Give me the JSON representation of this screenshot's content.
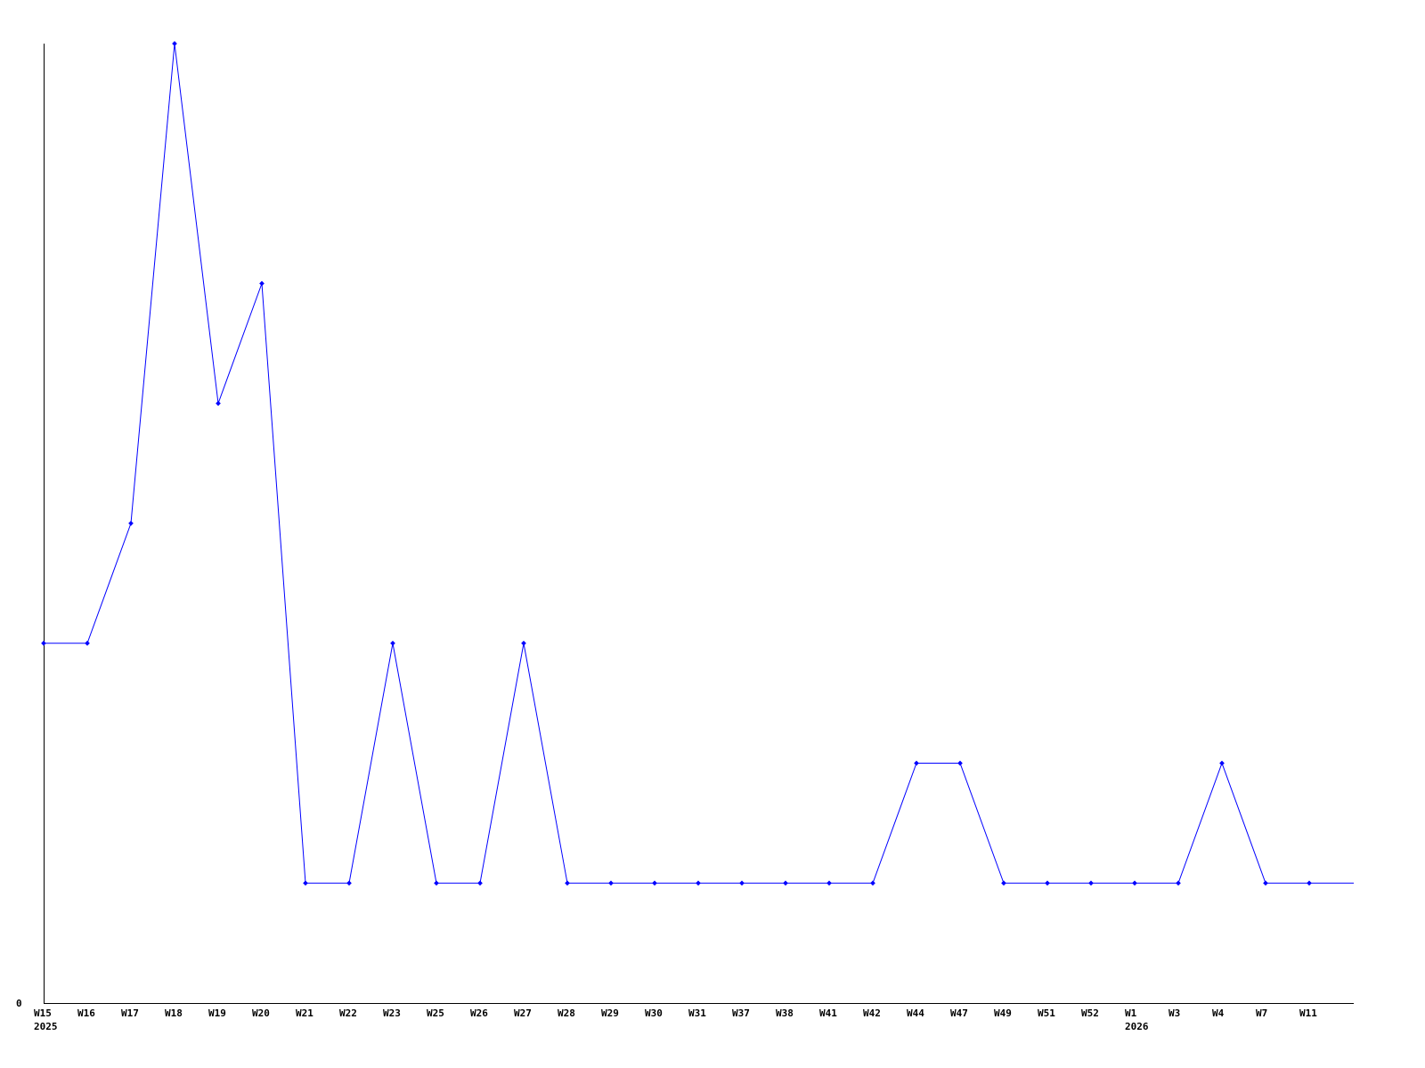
{
  "chart_data": {
    "type": "line",
    "title": "",
    "xlabel": "",
    "ylabel": "",
    "categories": [
      "W15",
      "W16",
      "W17",
      "W18",
      "W19",
      "W20",
      "W21",
      "W22",
      "W23",
      "W25",
      "W26",
      "W27",
      "W28",
      "W29",
      "W30",
      "W31",
      "W37",
      "W38",
      "W41",
      "W42",
      "W44",
      "W47",
      "W49",
      "W51",
      "W52",
      "W1",
      "W3",
      "W4",
      "W7",
      "W11"
    ],
    "year_labels": [
      {
        "at": "W15",
        "label": "2025"
      },
      {
        "at": "W1",
        "label": "2026"
      }
    ],
    "values": [
      3,
      3,
      4,
      8,
      5,
      6,
      1,
      1,
      3,
      1,
      1,
      3,
      1,
      1,
      1,
      1,
      1,
      1,
      1,
      1,
      2,
      2,
      1,
      1,
      1,
      1,
      1,
      2,
      1,
      1
    ],
    "trailing_value": 1,
    "y_tick_labels": [
      "0"
    ],
    "ylim": [
      0,
      8
    ],
    "grid": false,
    "legend": "none",
    "colors": {
      "line": "#0000ff",
      "axis": "#000000"
    }
  }
}
